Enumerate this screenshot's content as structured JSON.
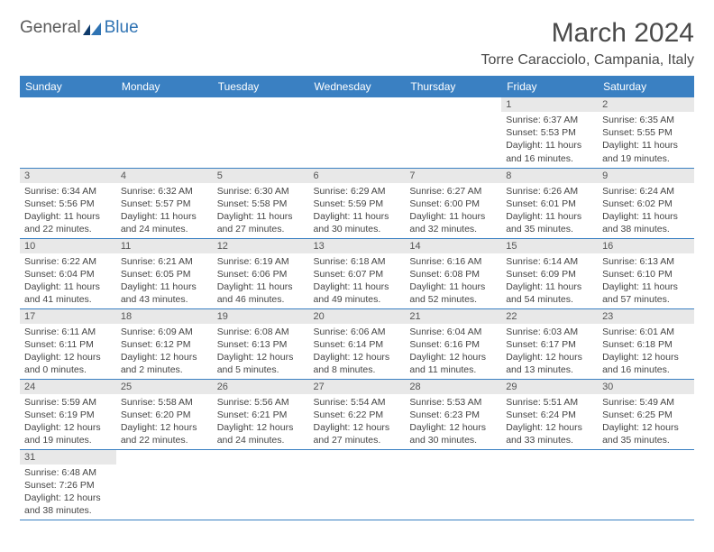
{
  "logo": {
    "text1": "General",
    "text2": "Blue"
  },
  "title": "March 2024",
  "location": "Torre Caracciolo, Campania, Italy",
  "colors": {
    "header_bg": "#3a80c2",
    "header_text": "#ffffff",
    "border": "#3a80c2",
    "daynum_bg": "#e8e8e8",
    "logo_gray": "#5a5a5a",
    "logo_blue": "#2f73b3"
  },
  "weekdays": [
    "Sunday",
    "Monday",
    "Tuesday",
    "Wednesday",
    "Thursday",
    "Friday",
    "Saturday"
  ],
  "weeks": [
    [
      null,
      null,
      null,
      null,
      null,
      {
        "n": "1",
        "sr": "6:37 AM",
        "ss": "5:53 PM",
        "dl": "11 hours and 16 minutes."
      },
      {
        "n": "2",
        "sr": "6:35 AM",
        "ss": "5:55 PM",
        "dl": "11 hours and 19 minutes."
      }
    ],
    [
      {
        "n": "3",
        "sr": "6:34 AM",
        "ss": "5:56 PM",
        "dl": "11 hours and 22 minutes."
      },
      {
        "n": "4",
        "sr": "6:32 AM",
        "ss": "5:57 PM",
        "dl": "11 hours and 24 minutes."
      },
      {
        "n": "5",
        "sr": "6:30 AM",
        "ss": "5:58 PM",
        "dl": "11 hours and 27 minutes."
      },
      {
        "n": "6",
        "sr": "6:29 AM",
        "ss": "5:59 PM",
        "dl": "11 hours and 30 minutes."
      },
      {
        "n": "7",
        "sr": "6:27 AM",
        "ss": "6:00 PM",
        "dl": "11 hours and 32 minutes."
      },
      {
        "n": "8",
        "sr": "6:26 AM",
        "ss": "6:01 PM",
        "dl": "11 hours and 35 minutes."
      },
      {
        "n": "9",
        "sr": "6:24 AM",
        "ss": "6:02 PM",
        "dl": "11 hours and 38 minutes."
      }
    ],
    [
      {
        "n": "10",
        "sr": "6:22 AM",
        "ss": "6:04 PM",
        "dl": "11 hours and 41 minutes."
      },
      {
        "n": "11",
        "sr": "6:21 AM",
        "ss": "6:05 PM",
        "dl": "11 hours and 43 minutes."
      },
      {
        "n": "12",
        "sr": "6:19 AM",
        "ss": "6:06 PM",
        "dl": "11 hours and 46 minutes."
      },
      {
        "n": "13",
        "sr": "6:18 AM",
        "ss": "6:07 PM",
        "dl": "11 hours and 49 minutes."
      },
      {
        "n": "14",
        "sr": "6:16 AM",
        "ss": "6:08 PM",
        "dl": "11 hours and 52 minutes."
      },
      {
        "n": "15",
        "sr": "6:14 AM",
        "ss": "6:09 PM",
        "dl": "11 hours and 54 minutes."
      },
      {
        "n": "16",
        "sr": "6:13 AM",
        "ss": "6:10 PM",
        "dl": "11 hours and 57 minutes."
      }
    ],
    [
      {
        "n": "17",
        "sr": "6:11 AM",
        "ss": "6:11 PM",
        "dl": "12 hours and 0 minutes."
      },
      {
        "n": "18",
        "sr": "6:09 AM",
        "ss": "6:12 PM",
        "dl": "12 hours and 2 minutes."
      },
      {
        "n": "19",
        "sr": "6:08 AM",
        "ss": "6:13 PM",
        "dl": "12 hours and 5 minutes."
      },
      {
        "n": "20",
        "sr": "6:06 AM",
        "ss": "6:14 PM",
        "dl": "12 hours and 8 minutes."
      },
      {
        "n": "21",
        "sr": "6:04 AM",
        "ss": "6:16 PM",
        "dl": "12 hours and 11 minutes."
      },
      {
        "n": "22",
        "sr": "6:03 AM",
        "ss": "6:17 PM",
        "dl": "12 hours and 13 minutes."
      },
      {
        "n": "23",
        "sr": "6:01 AM",
        "ss": "6:18 PM",
        "dl": "12 hours and 16 minutes."
      }
    ],
    [
      {
        "n": "24",
        "sr": "5:59 AM",
        "ss": "6:19 PM",
        "dl": "12 hours and 19 minutes."
      },
      {
        "n": "25",
        "sr": "5:58 AM",
        "ss": "6:20 PM",
        "dl": "12 hours and 22 minutes."
      },
      {
        "n": "26",
        "sr": "5:56 AM",
        "ss": "6:21 PM",
        "dl": "12 hours and 24 minutes."
      },
      {
        "n": "27",
        "sr": "5:54 AM",
        "ss": "6:22 PM",
        "dl": "12 hours and 27 minutes."
      },
      {
        "n": "28",
        "sr": "5:53 AM",
        "ss": "6:23 PM",
        "dl": "12 hours and 30 minutes."
      },
      {
        "n": "29",
        "sr": "5:51 AM",
        "ss": "6:24 PM",
        "dl": "12 hours and 33 minutes."
      },
      {
        "n": "30",
        "sr": "5:49 AM",
        "ss": "6:25 PM",
        "dl": "12 hours and 35 minutes."
      }
    ],
    [
      {
        "n": "31",
        "sr": "6:48 AM",
        "ss": "7:26 PM",
        "dl": "12 hours and 38 minutes."
      },
      null,
      null,
      null,
      null,
      null,
      null
    ]
  ],
  "labels": {
    "sunrise": "Sunrise:",
    "sunset": "Sunset:",
    "daylight": "Daylight:"
  }
}
